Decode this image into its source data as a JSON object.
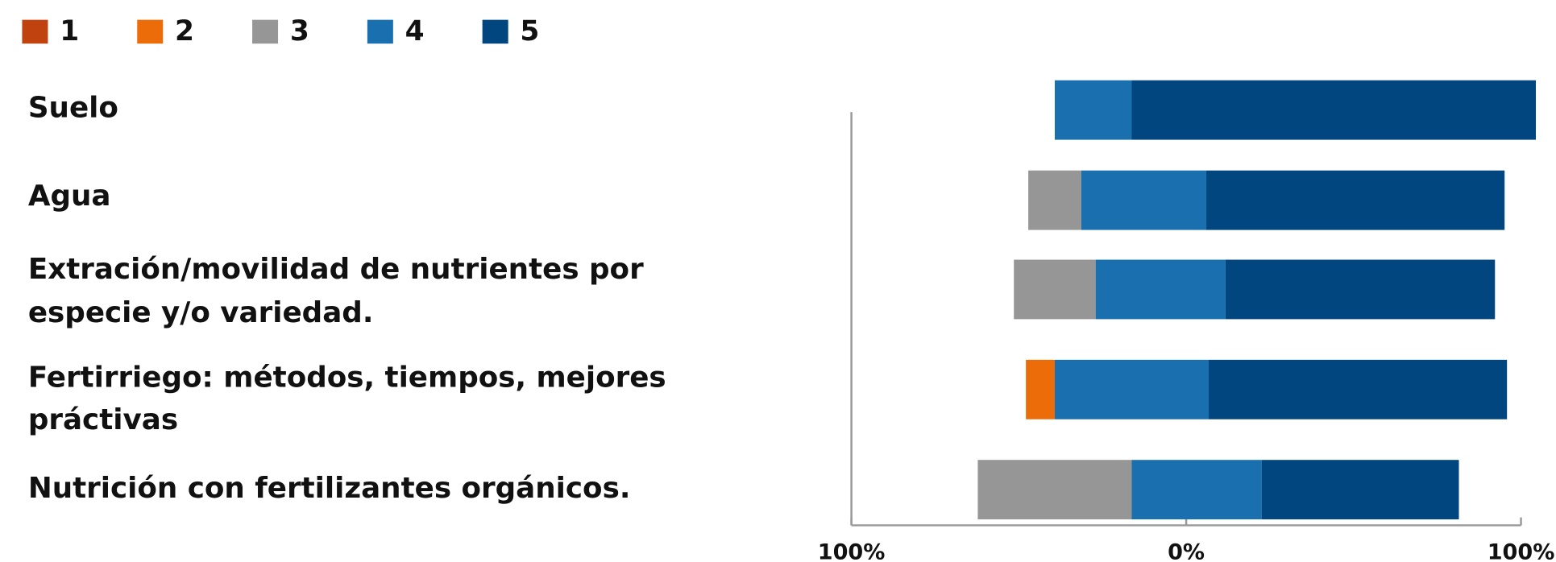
{
  "chart_data": {
    "type": "diverging-bar",
    "categories": [
      [
        "Suelo"
      ],
      [
        "Agua"
      ],
      [
        "Extración/movilidad de nutrientes por",
        "especie y/o variedad."
      ],
      [
        "Fertirriego: métodos, tiempos, mejores",
        "práctivas"
      ],
      [
        "Nutrición con fertilizantes orgánicos."
      ]
    ],
    "series": [
      {
        "name": "1",
        "color": "#c0420f",
        "values": [
          0,
          0,
          0,
          0,
          0
        ]
      },
      {
        "name": "2",
        "color": "#ec6c0a",
        "values": [
          0,
          0,
          0,
          6,
          0
        ]
      },
      {
        "name": "3",
        "color": "#969696",
        "values": [
          0,
          11,
          17,
          0,
          32
        ]
      },
      {
        "name": "4",
        "color": "#1a70ae",
        "values": [
          16,
          26,
          27,
          32,
          27
        ]
      },
      {
        "name": "5",
        "color": "#02467f",
        "values": [
          84,
          62,
          56,
          62,
          41
        ]
      }
    ],
    "xlim": [
      -100,
      100
    ],
    "xticks": [
      {
        "value": -100,
        "label": "100%"
      },
      {
        "value": 0,
        "label": "0%"
      },
      {
        "value": 100,
        "label": "100%"
      }
    ],
    "legend": "top-left"
  }
}
